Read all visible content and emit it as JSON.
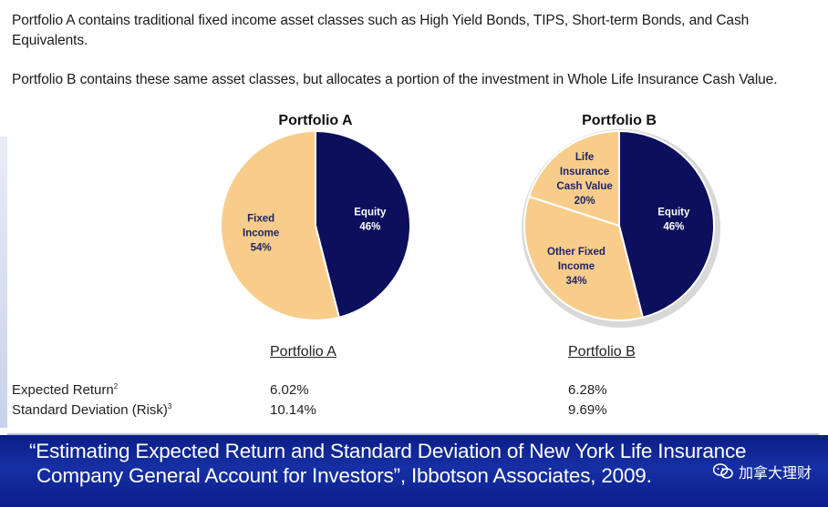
{
  "intro": {
    "portfolio_a": "Portfolio A contains traditional fixed income asset classes such as High Yield Bonds, TIPS, Short-term Bonds, and Cash Equivalents.",
    "portfolio_b": "Portfolio B contains these same asset classes, but allocates a portion of the investment in Whole Life Insurance Cash Value."
  },
  "colors": {
    "equity": "#0b0f5c",
    "fixed": "#f8cd8b",
    "slice_border": "#ffffff",
    "equity_text": "#ffffff",
    "fixed_text": "#1d2466"
  },
  "chart_data": [
    {
      "type": "pie",
      "title": "Portfolio A",
      "slices": [
        {
          "label": [
            "Equity",
            "46%"
          ],
          "value": 46,
          "color_key": "equity"
        },
        {
          "label": [
            "Fixed",
            "Income",
            "54%"
          ],
          "value": 54,
          "color_key": "fixed"
        }
      ]
    },
    {
      "type": "pie",
      "title": "Portfolio B",
      "slices": [
        {
          "label": [
            "Equity",
            "46%"
          ],
          "value": 46,
          "color_key": "equity"
        },
        {
          "label": [
            "Other Fixed",
            "Income",
            "34%"
          ],
          "value": 34,
          "color_key": "fixed"
        },
        {
          "label": [
            "Life",
            "Insurance",
            "Cash Value",
            "20%"
          ],
          "value": 20,
          "color_key": "fixed"
        }
      ]
    }
  ],
  "table": {
    "headers": [
      "Portfolio A",
      "Portfolio B"
    ],
    "rows": [
      {
        "label": "Expected Return",
        "footnote": "2",
        "values": [
          "6.02%",
          "6.28%"
        ]
      },
      {
        "label": "Standard Deviation (Risk)",
        "footnote": "3",
        "values": [
          "10.14%",
          "9.69%"
        ]
      }
    ]
  },
  "banner": {
    "line1": "“Estimating Expected Return and Standard Deviation of New York Life Insurance",
    "line2": "Company General Account for Investors”, Ibbotson Associates, 2009."
  },
  "watermark": {
    "text": "加拿大理财",
    "icon": "wechat-icon"
  }
}
